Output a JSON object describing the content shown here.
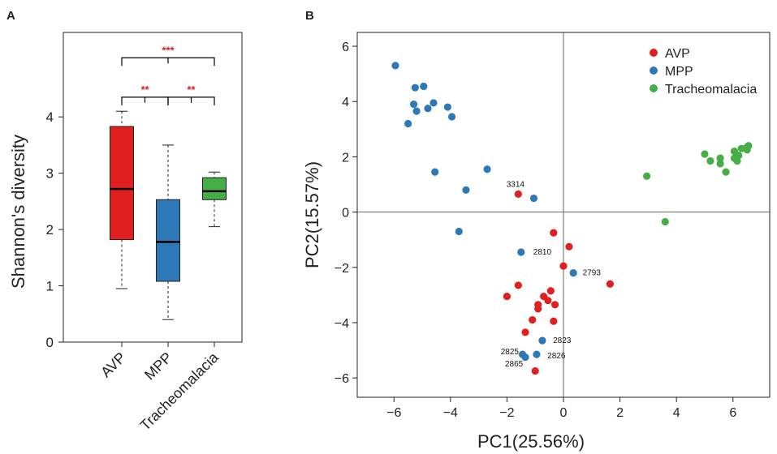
{
  "figure": {
    "panel_a_letter": "A",
    "panel_b_letter": "B"
  },
  "colors": {
    "avp": "#e02020",
    "mpp": "#2f78b7",
    "tracheomalacia": "#46ae46",
    "significance": "#e02020",
    "axis": "#222222"
  },
  "chart_data": [
    {
      "type": "box",
      "panel": "A",
      "title": "",
      "xlabel": "",
      "ylabel": "Shannon's diversity",
      "ylim": [
        0,
        5.5
      ],
      "yticks": [
        0,
        1,
        2,
        3,
        4
      ],
      "categories": [
        "AVP",
        "MPP",
        "Tracheomalacia"
      ],
      "boxes": [
        {
          "name": "AVP",
          "min": 0.95,
          "q1": 1.82,
          "median": 2.72,
          "q3": 3.83,
          "max": 4.1,
          "color": "#e02020"
        },
        {
          "name": "MPP",
          "min": 0.4,
          "q1": 1.08,
          "median": 1.78,
          "q3": 2.53,
          "max": 3.5,
          "color": "#2f78b7"
        },
        {
          "name": "Tracheomalacia",
          "min": 2.05,
          "q1": 2.53,
          "median": 2.68,
          "q3": 2.92,
          "max": 3.02,
          "color": "#46ae46"
        }
      ],
      "significance": [
        {
          "from": 0,
          "to": 1,
          "label": "**",
          "level": 4.35
        },
        {
          "from": 1,
          "to": 2,
          "label": "**",
          "level": 4.35
        },
        {
          "from": 0,
          "to": 2,
          "label": "***",
          "level": 5.05
        }
      ]
    },
    {
      "type": "scatter",
      "panel": "B",
      "title": "",
      "xlabel": "PC1(25.56%)",
      "ylabel": "PC2(15.57%)",
      "xlim": [
        -7.3,
        7.3
      ],
      "ylim": [
        -6.7,
        6.5
      ],
      "xticks": [
        -6,
        -4,
        -2,
        0,
        2,
        4,
        6
      ],
      "yticks": [
        -6,
        -4,
        -2,
        0,
        2,
        4,
        6
      ],
      "legend_position": "top-right",
      "series": [
        {
          "name": "AVP",
          "color": "#e02020",
          "points": [
            [
              -1.6,
              0.65
            ],
            [
              -0.35,
              -0.75
            ],
            [
              0.2,
              -1.25
            ],
            [
              0.0,
              -1.95
            ],
            [
              1.65,
              -2.6
            ],
            [
              -1.6,
              -2.65
            ],
            [
              -0.45,
              -2.85
            ],
            [
              -2.0,
              -3.05
            ],
            [
              -0.7,
              -3.05
            ],
            [
              -0.55,
              -3.2
            ],
            [
              -0.9,
              -3.35
            ],
            [
              -0.9,
              -3.5
            ],
            [
              -0.3,
              -3.35
            ],
            [
              -1.1,
              -3.9
            ],
            [
              -0.35,
              -3.95
            ],
            [
              -1.35,
              -4.35
            ],
            [
              -1.0,
              -5.75
            ]
          ]
        },
        {
          "name": "MPP",
          "color": "#2f78b7",
          "points": [
            [
              -5.95,
              5.3
            ],
            [
              -5.25,
              4.5
            ],
            [
              -4.95,
              4.55
            ],
            [
              -5.3,
              3.9
            ],
            [
              -4.6,
              3.95
            ],
            [
              -5.2,
              3.65
            ],
            [
              -4.8,
              3.75
            ],
            [
              -4.1,
              3.8
            ],
            [
              -3.95,
              3.45
            ],
            [
              -5.5,
              3.2
            ],
            [
              -4.55,
              1.45
            ],
            [
              -2.7,
              1.55
            ],
            [
              -3.45,
              0.8
            ],
            [
              -1.05,
              0.5
            ],
            [
              -3.7,
              -0.7
            ],
            [
              -1.5,
              -1.45
            ],
            [
              0.35,
              -2.2
            ],
            [
              -0.75,
              -4.65
            ],
            [
              -1.45,
              -5.15
            ],
            [
              -0.95,
              -5.15
            ],
            [
              -1.35,
              -5.25
            ]
          ]
        },
        {
          "name": "Tracheomalacia",
          "color": "#46ae46",
          "points": [
            [
              2.95,
              1.3
            ],
            [
              3.6,
              -0.35
            ],
            [
              5.0,
              2.1
            ],
            [
              5.2,
              1.85
            ],
            [
              5.55,
              1.95
            ],
            [
              5.55,
              1.75
            ],
            [
              5.75,
              1.45
            ],
            [
              6.05,
              2.2
            ],
            [
              6.05,
              1.95
            ],
            [
              6.15,
              1.85
            ],
            [
              6.2,
              2.05
            ],
            [
              6.3,
              2.3
            ],
            [
              6.5,
              2.25
            ],
            [
              6.5,
              2.35
            ],
            [
              6.55,
              2.4
            ]
          ]
        }
      ],
      "annotations": [
        {
          "text": "3314",
          "x": -1.7,
          "y": 1.0
        },
        {
          "text": "2810",
          "x": -0.75,
          "y": -1.45
        },
        {
          "text": "2793",
          "x": 1.0,
          "y": -2.2
        },
        {
          "text": "2823",
          "x": -0.05,
          "y": -4.65
        },
        {
          "text": "2825",
          "x": -1.9,
          "y": -5.05
        },
        {
          "text": "2826",
          "x": -0.25,
          "y": -5.2
        },
        {
          "text": "2865",
          "x": -1.75,
          "y": -5.5
        }
      ]
    }
  ]
}
